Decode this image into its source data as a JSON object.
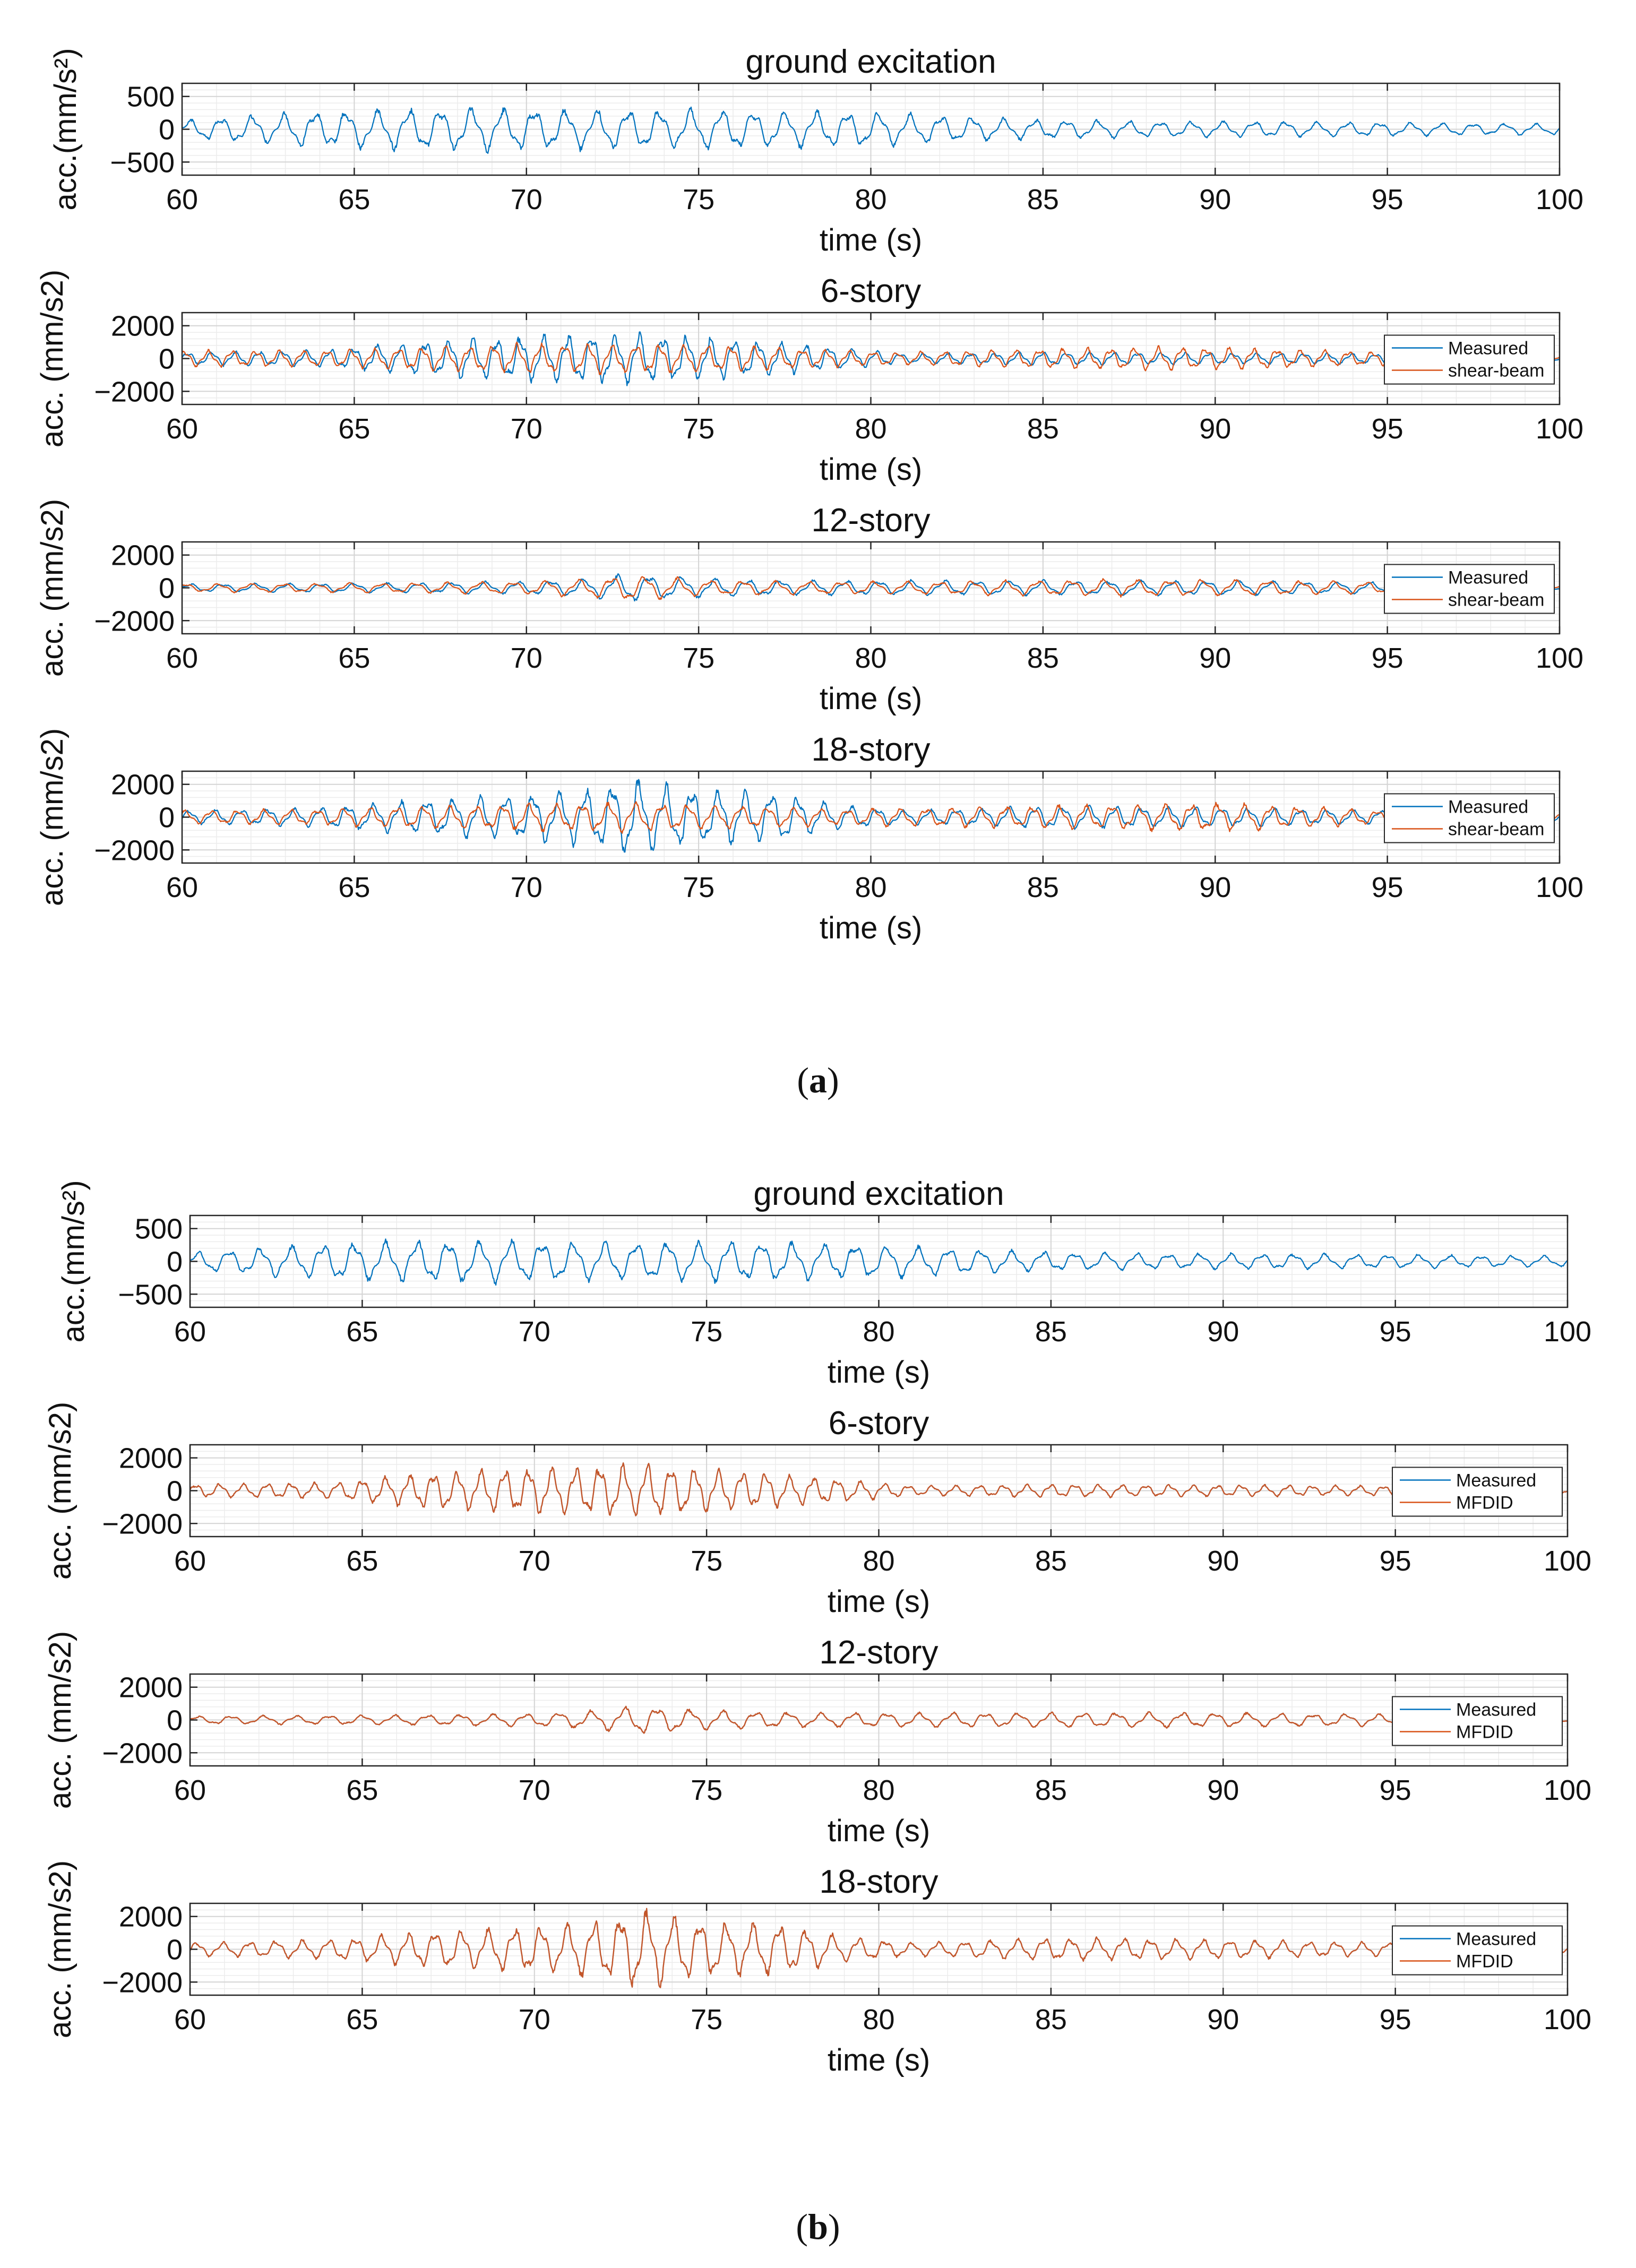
{
  "chart_data": [
    {
      "panel": "a",
      "type": "line",
      "title": "ground excitation",
      "ylabel": "acc.(mm/s²)",
      "xlabel": "time (s)",
      "xlim": [
        60,
        100
      ],
      "ylim": [
        -700,
        700
      ],
      "xticks": [
        60,
        65,
        70,
        75,
        80,
        85,
        90,
        95,
        100
      ],
      "yticks": [
        -500,
        0,
        500
      ],
      "ytick_labels": [
        "−500",
        "0",
        "500"
      ],
      "legend": [],
      "legend_position": "none",
      "series": [
        {
          "name": "ground",
          "color": "#0072BD",
          "amplitude_envelope": [
            [
              60,
              140
            ],
            [
              64,
              280
            ],
            [
              68,
              330
            ],
            [
              72,
              300
            ],
            [
              76,
              300
            ],
            [
              80,
              260
            ],
            [
              84,
              160
            ],
            [
              88,
              120
            ],
            [
              92,
              120
            ],
            [
              96,
              100
            ],
            [
              100,
              80
            ]
          ]
        }
      ]
    },
    {
      "panel": "a",
      "type": "line",
      "title": "6-story",
      "ylabel": "acc. (mm/s2)",
      "xlabel": "time (s)",
      "xlim": [
        60,
        100
      ],
      "ylim": [
        -2800,
        2800
      ],
      "xticks": [
        60,
        65,
        70,
        75,
        80,
        85,
        90,
        95,
        100
      ],
      "yticks": [
        -2000,
        0,
        2000
      ],
      "ytick_labels": [
        "−2000",
        "0",
        "2000"
      ],
      "legend": [
        "Measured",
        "shear-beam"
      ],
      "legend_position": "right",
      "series": [
        {
          "name": "Measured",
          "color": "#0072BD",
          "amplitude_envelope": [
            [
              60,
              400
            ],
            [
              64,
              500
            ],
            [
              67,
              1100
            ],
            [
              70,
              1400
            ],
            [
              73,
              1600
            ],
            [
              76,
              1200
            ],
            [
              79,
              700
            ],
            [
              81,
              300
            ],
            [
              85,
              400
            ],
            [
              90,
              350
            ],
            [
              95,
              300
            ],
            [
              100,
              200
            ]
          ]
        },
        {
          "name": "shear-beam",
          "color": "#D95319",
          "amplitude_envelope": [
            [
              60,
              500
            ],
            [
              64,
              500
            ],
            [
              67,
              700
            ],
            [
              70,
              900
            ],
            [
              73,
              900
            ],
            [
              76,
              800
            ],
            [
              79,
              500
            ],
            [
              81,
              400
            ],
            [
              85,
              600
            ],
            [
              88,
              700
            ],
            [
              90,
              700
            ],
            [
              95,
              400
            ],
            [
              100,
              200
            ]
          ]
        }
      ]
    },
    {
      "panel": "a",
      "type": "line",
      "title": "12-story",
      "ylabel": "acc. (mm/s2)",
      "xlabel": "time (s)",
      "xlim": [
        60,
        100
      ],
      "ylim": [
        -2800,
        2800
      ],
      "xticks": [
        60,
        65,
        70,
        75,
        80,
        85,
        90,
        95,
        100
      ],
      "yticks": [
        -2000,
        0,
        2000
      ],
      "ytick_labels": [
        "−2000",
        "0",
        "2000"
      ],
      "legend": [
        "Measured",
        "shear-beam"
      ],
      "legend_position": "right",
      "series": [
        {
          "name": "Measured",
          "color": "#0072BD",
          "amplitude_envelope": [
            [
              60,
              250
            ],
            [
              66,
              300
            ],
            [
              70,
              400
            ],
            [
              72,
              600
            ],
            [
              73,
              900
            ],
            [
              75,
              600
            ],
            [
              78,
              450
            ],
            [
              82,
              450
            ],
            [
              86,
              450
            ],
            [
              90,
              450
            ],
            [
              95,
              350
            ],
            [
              100,
              200
            ]
          ]
        },
        {
          "name": "shear-beam",
          "color": "#D95319",
          "amplitude_envelope": [
            [
              60,
              250
            ],
            [
              66,
              300
            ],
            [
              70,
              400
            ],
            [
              72,
              600
            ],
            [
              73,
              800
            ],
            [
              75,
              500
            ],
            [
              78,
              400
            ],
            [
              82,
              400
            ],
            [
              86,
              500
            ],
            [
              90,
              500
            ],
            [
              95,
              350
            ],
            [
              100,
              200
            ]
          ]
        }
      ]
    },
    {
      "panel": "a",
      "type": "line",
      "title": "18-story",
      "ylabel": "acc. (mm/s2)",
      "xlabel": "time (s)",
      "xlim": [
        60,
        100
      ],
      "ylim": [
        -2800,
        2800
      ],
      "xticks": [
        60,
        65,
        70,
        75,
        80,
        85,
        90,
        95,
        100
      ],
      "yticks": [
        -2000,
        0,
        2000
      ],
      "ytick_labels": [
        "−2000",
        "0",
        "2000"
      ],
      "legend": [
        "Measured",
        "shear-beam"
      ],
      "legend_position": "right",
      "series": [
        {
          "name": "Measured",
          "color": "#0072BD",
          "amplitude_envelope": [
            [
              60,
              400
            ],
            [
              64,
              600
            ],
            [
              67,
              1100
            ],
            [
              70,
              1400
            ],
            [
              72,
              1800
            ],
            [
              73,
              2400
            ],
            [
              75,
              1700
            ],
            [
              77,
              1600
            ],
            [
              79,
              800
            ],
            [
              81,
              400
            ],
            [
              85,
              700
            ],
            [
              90,
              600
            ],
            [
              95,
              400
            ],
            [
              100,
              200
            ]
          ]
        },
        {
          "name": "shear-beam",
          "color": "#D95319",
          "amplitude_envelope": [
            [
              60,
              400
            ],
            [
              64,
              500
            ],
            [
              67,
              700
            ],
            [
              70,
              800
            ],
            [
              73,
              900
            ],
            [
              76,
              700
            ],
            [
              79,
              500
            ],
            [
              82,
              600
            ],
            [
              85,
              700
            ],
            [
              88,
              800
            ],
            [
              90,
              900
            ],
            [
              95,
              400
            ],
            [
              100,
              200
            ]
          ]
        }
      ]
    },
    {
      "panel": "b",
      "type": "line",
      "title": "ground excitation",
      "ylabel": "acc.(mm/s²)",
      "xlabel": "time (s)",
      "xlim": [
        60,
        100
      ],
      "ylim": [
        -700,
        700
      ],
      "xticks": [
        60,
        65,
        70,
        75,
        80,
        85,
        90,
        95,
        100
      ],
      "yticks": [
        -500,
        0,
        500
      ],
      "ytick_labels": [
        "−500",
        "0",
        "500"
      ],
      "legend": [],
      "legend_position": "none",
      "series": [
        {
          "name": "ground",
          "color": "#0072BD",
          "amplitude_envelope": [
            [
              60,
              140
            ],
            [
              64,
              280
            ],
            [
              68,
              330
            ],
            [
              72,
              300
            ],
            [
              76,
              300
            ],
            [
              80,
              260
            ],
            [
              84,
              160
            ],
            [
              88,
              120
            ],
            [
              92,
              120
            ],
            [
              96,
              100
            ],
            [
              100,
              80
            ]
          ]
        }
      ]
    },
    {
      "panel": "b",
      "type": "line",
      "title": "6-story",
      "ylabel": "acc. (mm/s2)",
      "xlabel": "time (s)",
      "xlim": [
        60,
        100
      ],
      "ylim": [
        -2800,
        2800
      ],
      "xticks": [
        60,
        65,
        70,
        75,
        80,
        85,
        90,
        95,
        100
      ],
      "yticks": [
        -2000,
        0,
        2000
      ],
      "ytick_labels": [
        "−2000",
        "0",
        "2000"
      ],
      "legend": [
        "Measured",
        "MFDID"
      ],
      "legend_position": "right",
      "series": [
        {
          "name": "Measured",
          "color": "#0072BD",
          "amplitude_envelope": [
            [
              60,
              400
            ],
            [
              64,
              500
            ],
            [
              67,
              1100
            ],
            [
              70,
              1400
            ],
            [
              73,
              1600
            ],
            [
              76,
              1200
            ],
            [
              79,
              700
            ],
            [
              81,
              300
            ],
            [
              85,
              400
            ],
            [
              90,
              350
            ],
            [
              95,
              300
            ],
            [
              100,
              200
            ]
          ]
        },
        {
          "name": "MFDID",
          "color": "#D95319",
          "amplitude_envelope": [
            [
              60,
              400
            ],
            [
              64,
              500
            ],
            [
              67,
              1100
            ],
            [
              70,
              1400
            ],
            [
              73,
              1600
            ],
            [
              76,
              1200
            ],
            [
              79,
              700
            ],
            [
              81,
              300
            ],
            [
              85,
              400
            ],
            [
              90,
              350
            ],
            [
              95,
              300
            ],
            [
              100,
              200
            ]
          ]
        }
      ]
    },
    {
      "panel": "b",
      "type": "line",
      "title": "12-story",
      "ylabel": "acc. (mm/s2)",
      "xlabel": "time (s)",
      "xlim": [
        60,
        100
      ],
      "ylim": [
        -2800,
        2800
      ],
      "xticks": [
        60,
        65,
        70,
        75,
        80,
        85,
        90,
        95,
        100
      ],
      "yticks": [
        -2000,
        0,
        2000
      ],
      "ytick_labels": [
        "−2000",
        "0",
        "2000"
      ],
      "legend": [
        "Measured",
        "MFDID"
      ],
      "legend_position": "right",
      "series": [
        {
          "name": "Measured",
          "color": "#0072BD",
          "amplitude_envelope": [
            [
              60,
              250
            ],
            [
              66,
              300
            ],
            [
              70,
              400
            ],
            [
              72,
              600
            ],
            [
              73,
              900
            ],
            [
              75,
              600
            ],
            [
              78,
              450
            ],
            [
              82,
              450
            ],
            [
              86,
              450
            ],
            [
              90,
              450
            ],
            [
              95,
              350
            ],
            [
              100,
              200
            ]
          ]
        },
        {
          "name": "MFDID",
          "color": "#D95319",
          "amplitude_envelope": [
            [
              60,
              250
            ],
            [
              66,
              300
            ],
            [
              70,
              400
            ],
            [
              72,
              600
            ],
            [
              73,
              900
            ],
            [
              75,
              600
            ],
            [
              78,
              450
            ],
            [
              82,
              450
            ],
            [
              86,
              450
            ],
            [
              90,
              450
            ],
            [
              95,
              350
            ],
            [
              100,
              200
            ]
          ]
        }
      ]
    },
    {
      "panel": "b",
      "type": "line",
      "title": "18-story",
      "ylabel": "acc. (mm/s2)",
      "xlabel": "time (s)",
      "xlim": [
        60,
        100
      ],
      "ylim": [
        -2800,
        2800
      ],
      "xticks": [
        60,
        65,
        70,
        75,
        80,
        85,
        90,
        95,
        100
      ],
      "yticks": [
        -2000,
        0,
        2000
      ],
      "ytick_labels": [
        "−2000",
        "0",
        "2000"
      ],
      "legend": [
        "Measured",
        "MFDID"
      ],
      "legend_position": "right",
      "series": [
        {
          "name": "Measured",
          "color": "#0072BD",
          "amplitude_envelope": [
            [
              60,
              400
            ],
            [
              64,
              600
            ],
            [
              67,
              1100
            ],
            [
              70,
              1400
            ],
            [
              72,
              1800
            ],
            [
              73,
              2400
            ],
            [
              75,
              1700
            ],
            [
              77,
              1600
            ],
            [
              79,
              800
            ],
            [
              81,
              400
            ],
            [
              85,
              700
            ],
            [
              90,
              600
            ],
            [
              95,
              400
            ],
            [
              100,
              200
            ]
          ]
        },
        {
          "name": "MFDID",
          "color": "#D95319",
          "amplitude_envelope": [
            [
              60,
              400
            ],
            [
              64,
              600
            ],
            [
              67,
              1100
            ],
            [
              70,
              1400
            ],
            [
              72,
              1800
            ],
            [
              73,
              2400
            ],
            [
              75,
              1700
            ],
            [
              77,
              1600
            ],
            [
              79,
              800
            ],
            [
              81,
              400
            ],
            [
              85,
              700
            ],
            [
              90,
              600
            ],
            [
              95,
              400
            ],
            [
              100,
              200
            ]
          ]
        }
      ]
    }
  ],
  "captions": {
    "a": "a",
    "b": "b"
  }
}
